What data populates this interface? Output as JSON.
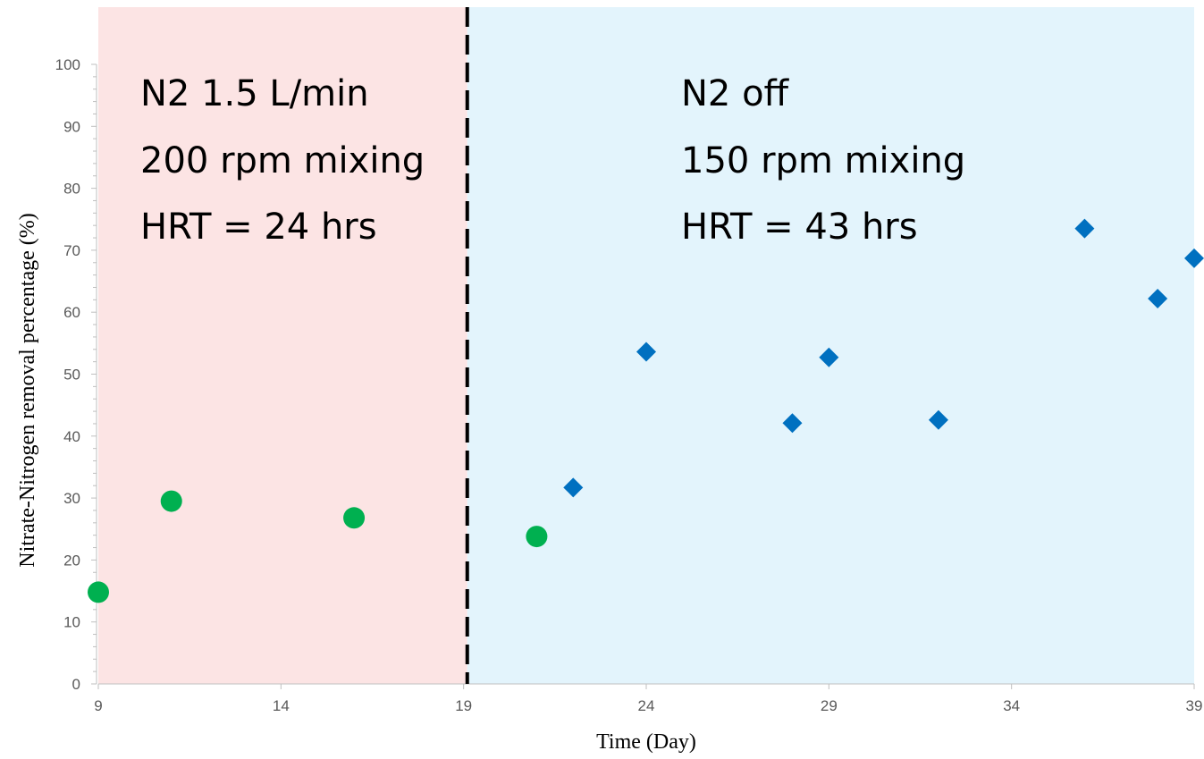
{
  "chart_data": {
    "type": "scatter",
    "title": "",
    "xlabel": "Time (Day)",
    "ylabel": "Nitrate-Nitrogen removal percentage (%)",
    "xlim": [
      9,
      39
    ],
    "ylim": [
      0,
      100
    ],
    "x_ticks": [
      9,
      14,
      19,
      24,
      29,
      34,
      39
    ],
    "y_ticks": [
      0,
      10,
      20,
      30,
      40,
      50,
      60,
      70,
      80,
      90,
      100
    ],
    "grid": false,
    "legend": "none",
    "divider_x": 19.1,
    "regions": [
      {
        "x_start": 9,
        "x_end": 19.1,
        "color": "#fce4e4",
        "lines": [
          "N2 1.5 L/min",
          "200 rpm mixing",
          "HRT = 24 hrs"
        ]
      },
      {
        "x_start": 19.1,
        "x_end": 39,
        "color": "#e3f4fc",
        "lines": [
          "N2 off",
          "150 rpm mixing",
          "HRT = 43 hrs"
        ]
      }
    ],
    "series": [
      {
        "marker": "circle",
        "color": "#00b050",
        "points": [
          [
            9,
            14.8
          ],
          [
            11,
            29.5
          ],
          [
            16,
            26.8
          ],
          [
            21,
            23.8
          ]
        ]
      },
      {
        "marker": "diamond",
        "color": "#0070c0",
        "points": [
          [
            22,
            31.7
          ],
          [
            24,
            53.6
          ],
          [
            28,
            42.1
          ],
          [
            29,
            52.7
          ],
          [
            32,
            42.6
          ],
          [
            36,
            73.5
          ],
          [
            38,
            62.2
          ],
          [
            39,
            68.7
          ]
        ]
      }
    ]
  }
}
